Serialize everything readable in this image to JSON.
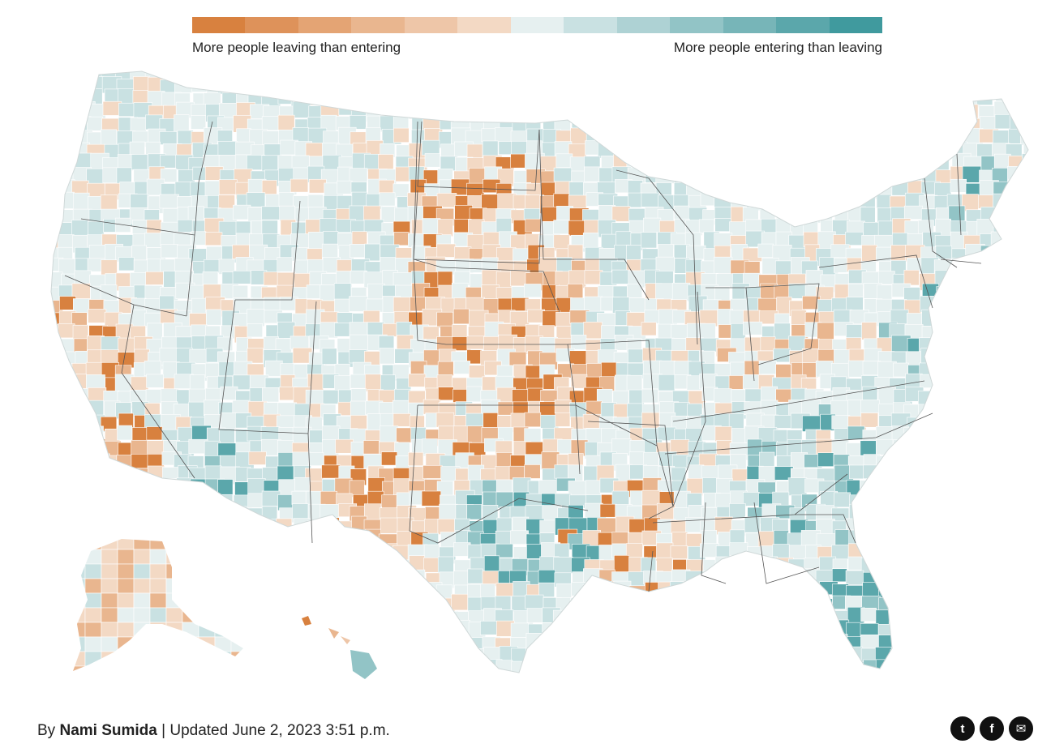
{
  "legend": {
    "left_label": "More people leaving than entering",
    "right_label": "More people entering than leaving",
    "colors": [
      "#d8813f",
      "#de925a",
      "#e4a474",
      "#e9b68f",
      "#eec6a8",
      "#f3d9c4",
      "#e6f0f0",
      "#c9e1e2",
      "#aed2d4",
      "#92c4c6",
      "#77b5b8",
      "#5ba7ab",
      "#409a9e"
    ]
  },
  "byline": {
    "prefix": "By",
    "author": "Nami Sumida",
    "separator": "|",
    "updated": "Updated June 2, 2023 3:51 p.m."
  },
  "share": {
    "twitter": "t",
    "facebook": "f",
    "email": "✉"
  },
  "map_colors": {
    "strong_out": "#d8813f",
    "mid_out": "#e9b68f",
    "light_out": "#f3d9c4",
    "neutral": "#e6f0f0",
    "light_in": "#c9e1e2",
    "mid_in": "#92c4c6",
    "strong_in": "#5ba7ab",
    "state_border": "#555555"
  }
}
